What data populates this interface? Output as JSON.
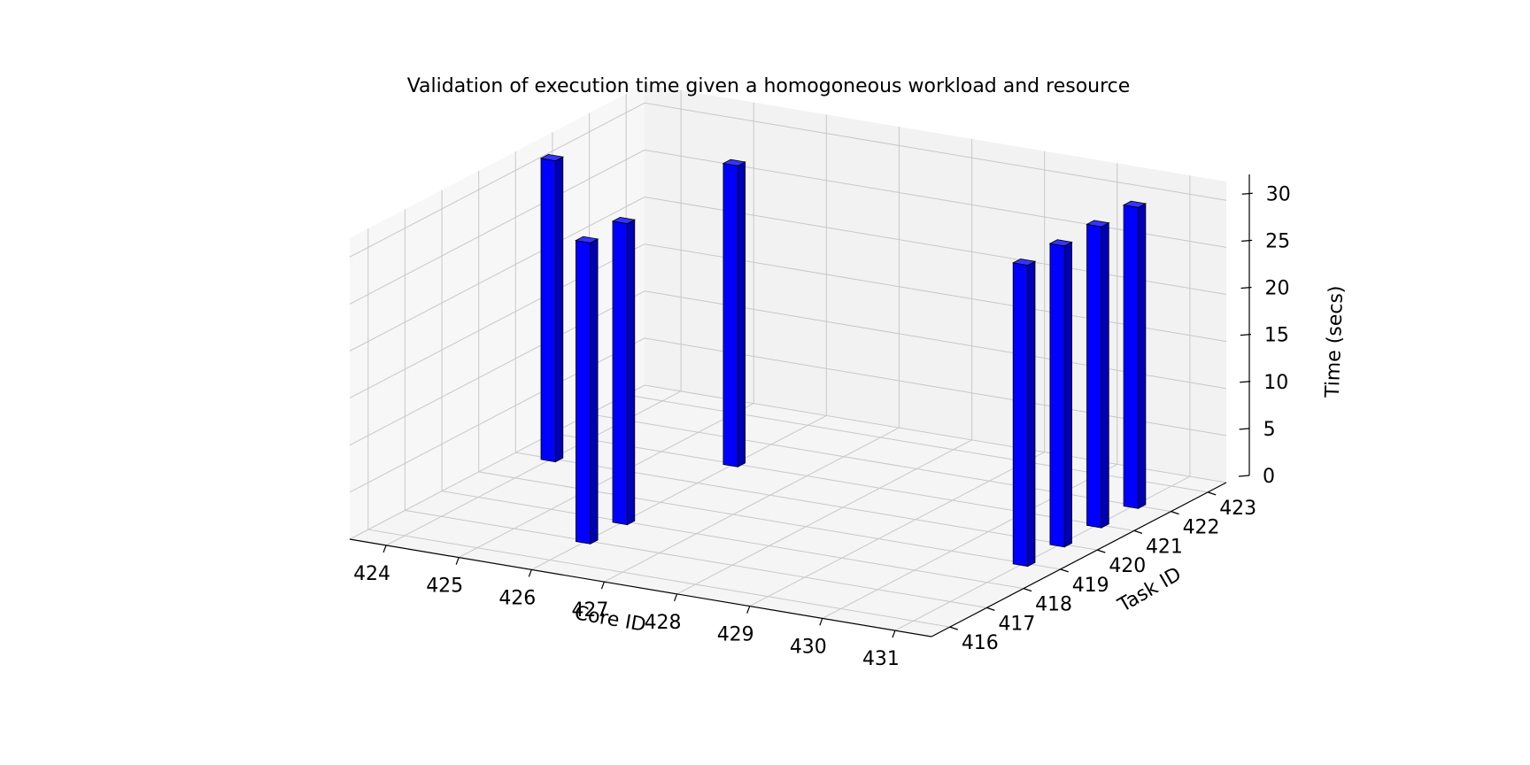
{
  "chart_data": {
    "type": "bar3d",
    "title": "Validation of execution time given a homogoneous workload and resource",
    "xlabel": "Core ID",
    "ylabel": "Task ID",
    "zlabel": "Time (secs)",
    "x_ticks": [
      "424",
      "425",
      "426",
      "427",
      "428",
      "429",
      "430",
      "431"
    ],
    "y_ticks": [
      "416",
      "417",
      "418",
      "419",
      "420",
      "421",
      "422",
      "423"
    ],
    "z_ticks": [
      "0",
      "5",
      "10",
      "15",
      "20",
      "25",
      "30"
    ],
    "xlim": [
      423.5,
      431.5
    ],
    "ylim": [
      415.5,
      423.5
    ],
    "zlim": [
      0,
      32
    ],
    "bar_color": "#0000ff",
    "bars": [
      {
        "core": 424,
        "task": 420,
        "time": 32
      },
      {
        "core": 426,
        "task": 417,
        "time": 32
      },
      {
        "core": 426,
        "task": 421,
        "time": 32
      },
      {
        "core": 426,
        "task": 418,
        "time": 32
      },
      {
        "core": 431,
        "task": 422,
        "time": 32
      },
      {
        "core": 431,
        "task": 421,
        "time": 32
      },
      {
        "core": 431,
        "task": 420,
        "time": 32
      },
      {
        "core": 431,
        "task": 419,
        "time": 32
      }
    ]
  }
}
